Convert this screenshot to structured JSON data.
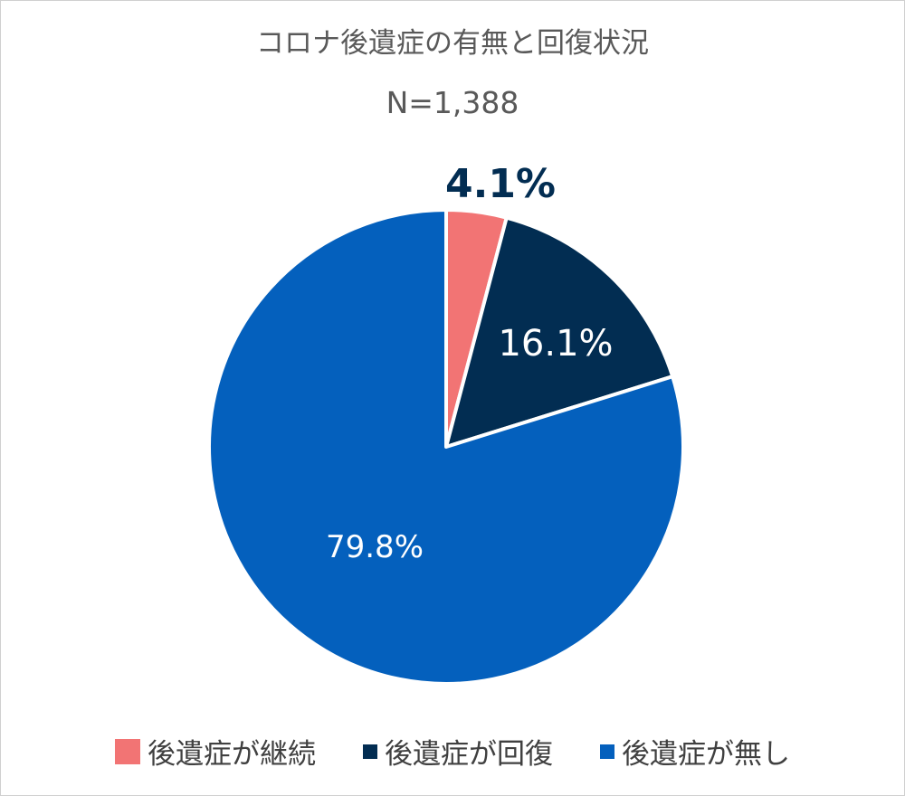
{
  "chart_data": {
    "type": "pie",
    "title": "コロナ後遺症の有無と回復状況",
    "subtitle": "N=1,388",
    "slices": [
      {
        "name": "後遺症が継続",
        "value": 4.1,
        "label": "4.1%",
        "color": "#f27474"
      },
      {
        "name": "後遺症が回復",
        "value": 16.1,
        "label": "16.1%",
        "color": "#022d52"
      },
      {
        "name": "後遺症が無し",
        "value": 79.8,
        "label": "79.8%",
        "color": "#0460bd"
      }
    ],
    "start_angle_deg": 0,
    "direction": "clockwise",
    "legend_position": "bottom"
  }
}
